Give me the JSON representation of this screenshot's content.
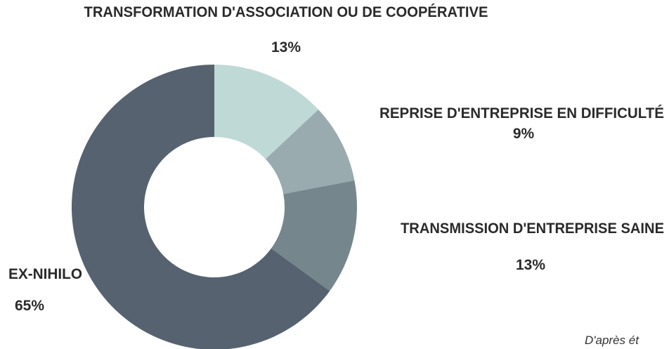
{
  "chart_data": {
    "type": "pie",
    "categories": [
      "TRANSFORMATION D'ASSOCIATION OU DE COOPÉRATIVE",
      "REPRISE D'ENTREPRISE EN DIFFICULTÉ",
      "TRANSMISSION D'ENTREPRISE SAINE",
      "EX-NIHILO"
    ],
    "values": [
      13,
      9,
      13,
      65
    ],
    "value_labels": [
      "13%",
      "9%",
      "13%",
      "65%"
    ],
    "colors": [
      "#bfd9d6",
      "#9aabb0",
      "#76868d",
      "#566270"
    ],
    "source": "D'après ét"
  }
}
